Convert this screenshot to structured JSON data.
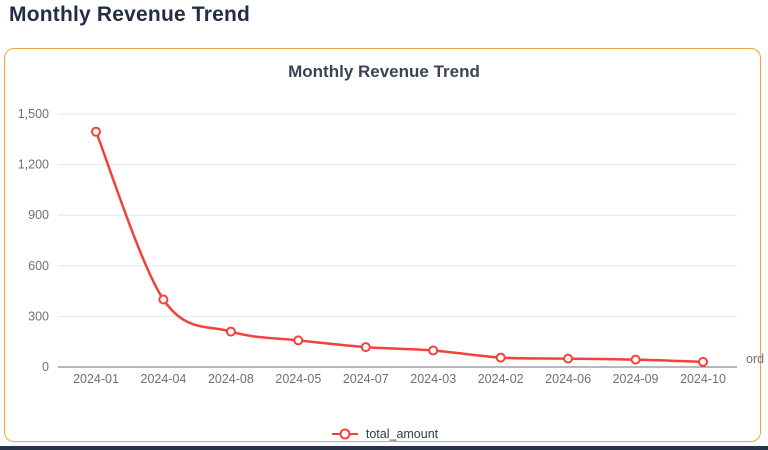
{
  "page": {
    "title": "Monthly Revenue Trend"
  },
  "card": {
    "border_color": "#f0a63c",
    "background": "#ffffff"
  },
  "chart": {
    "title": "Monthly Revenue Trend",
    "x_axis_name_visible": "ord",
    "colors": {
      "series_red": "#f2423c",
      "gridline": "#e0e6f1",
      "axis_line": "#6e7079",
      "axis_label": "#6e7079",
      "legend_text": "#333a45",
      "title_text": "#3c4454",
      "bottom_bar": "#26344a"
    }
  },
  "chart_data": {
    "type": "line",
    "title": "Monthly Revenue Trend",
    "categories": [
      "2024-01",
      "2024-04",
      "2024-08",
      "2024-05",
      "2024-07",
      "2024-03",
      "2024-02",
      "2024-06",
      "2024-09",
      "2024-10"
    ],
    "series": [
      {
        "name": "total_amount",
        "values": [
          1395,
          400,
          210,
          158,
          118,
          98,
          56,
          50,
          44,
          30
        ],
        "color": "#f2423c",
        "smooth": true,
        "marker": "hollow-circle"
      }
    ],
    "xlabel": "ord",
    "ylabel": "",
    "ylim": [
      0,
      1500
    ],
    "yticks": [
      0,
      300,
      600,
      900,
      1200,
      1500
    ],
    "grid": true,
    "legend_position": "bottom-center"
  }
}
